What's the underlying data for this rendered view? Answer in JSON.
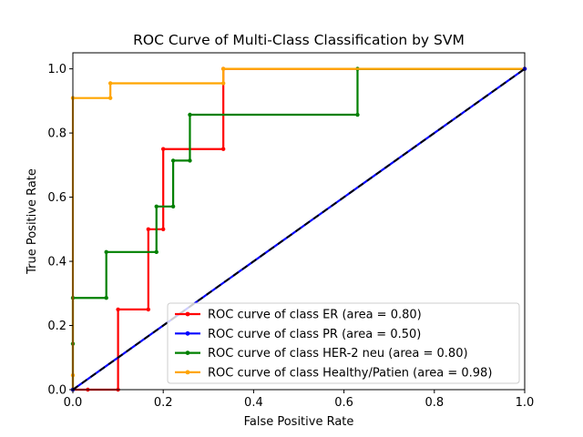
{
  "chart_data": {
    "type": "line",
    "title": "ROC Curve of Multi-Class Classification by SVM",
    "xlabel": "False Positive Rate",
    "ylabel": "True Positive Rate",
    "xlim": [
      0.0,
      1.0
    ],
    "ylim": [
      0.0,
      1.05
    ],
    "xticks": [
      "0.0",
      "0.2",
      "0.4",
      "0.6",
      "0.8",
      "1.0"
    ],
    "yticks": [
      "0.0",
      "0.2",
      "0.4",
      "0.6",
      "0.8",
      "1.0"
    ],
    "grid": false,
    "legend_position": "lower-right",
    "series": [
      {
        "name": "ROC curve of class ER (area = 0.80)",
        "color": "#ff0000",
        "marker": "dot",
        "x": [
          0.0,
          0.0,
          0.033,
          0.1,
          0.1,
          0.167,
          0.167,
          0.2,
          0.2,
          0.333,
          0.333,
          1.0
        ],
        "y": [
          0.0,
          0.0,
          0.0,
          0.0,
          0.25,
          0.25,
          0.5,
          0.5,
          0.75,
          0.75,
          1.0,
          1.0
        ]
      },
      {
        "name": "ROC curve of class PR (area = 0.50)",
        "color": "#0000ff",
        "marker": "dot",
        "x": [
          0.0,
          1.0
        ],
        "y": [
          0.0,
          1.0
        ]
      },
      {
        "name": "ROC curve of class HER-2 neu (area = 0.80)",
        "color": "#008000",
        "marker": "dot",
        "x": [
          0.0,
          0.0,
          0.0,
          0.074,
          0.074,
          0.185,
          0.185,
          0.222,
          0.222,
          0.259,
          0.259,
          0.63,
          0.63,
          1.0
        ],
        "y": [
          0.0,
          0.143,
          0.286,
          0.286,
          0.429,
          0.429,
          0.571,
          0.571,
          0.714,
          0.714,
          0.857,
          0.857,
          1.0,
          1.0
        ]
      },
      {
        "name": "ROC curve of class Healthy/Patien (area = 0.98)",
        "color": "#ffa500",
        "marker": "dot",
        "x": [
          0.0,
          0.0,
          0.0,
          0.083,
          0.083,
          0.333,
          0.333,
          1.0
        ],
        "y": [
          0.0,
          0.045,
          0.909,
          0.909,
          0.955,
          0.955,
          1.0,
          1.0
        ]
      }
    ],
    "reference_line": {
      "x": [
        0.0,
        1.0
      ],
      "y": [
        0.0,
        1.0
      ],
      "color": "#000000",
      "style": "dashed"
    }
  }
}
